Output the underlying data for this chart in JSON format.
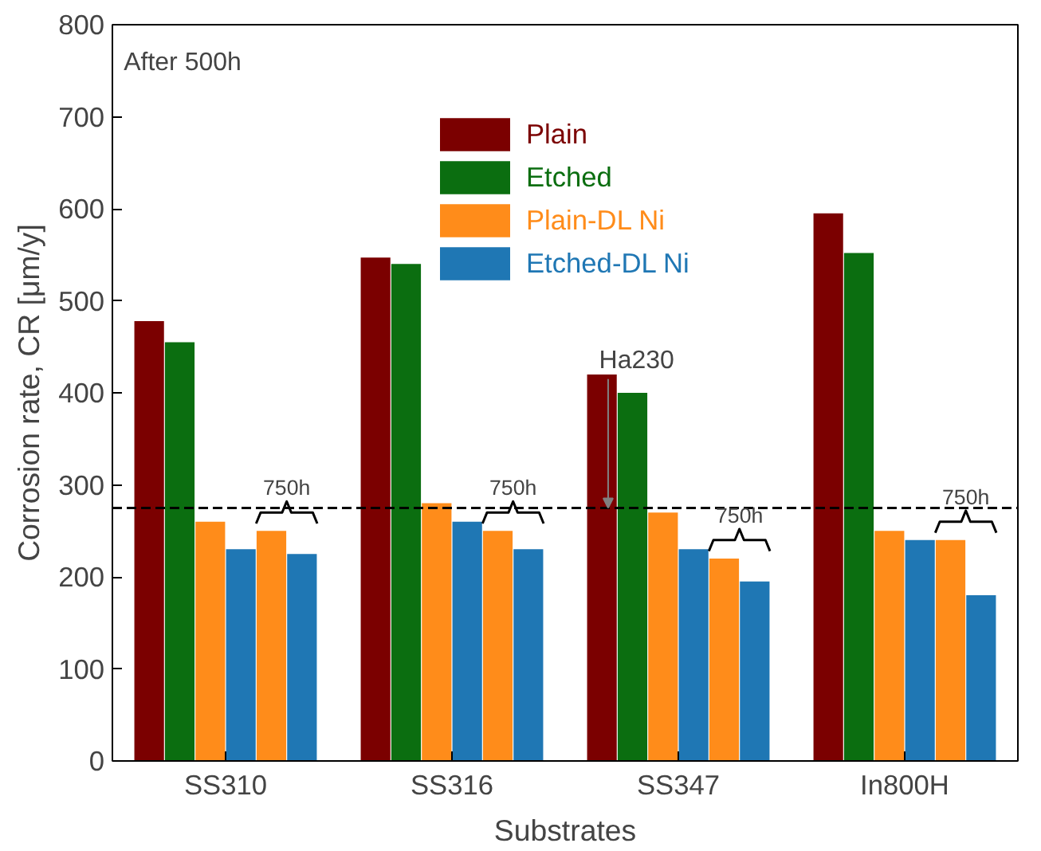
{
  "chart_data": {
    "type": "bar",
    "xlabel": "Substrates",
    "ylabel": "Corrosion rate, CR [μm/y]",
    "categories": [
      "SS310",
      "SS316",
      "SS347",
      "In800H"
    ],
    "series": [
      {
        "name": "Plain",
        "color": "#7b0000",
        "values": [
          478,
          547,
          420,
          595
        ]
      },
      {
        "name": "Etched",
        "color": "#0b6e10",
        "values": [
          455,
          540,
          400,
          552
        ]
      },
      {
        "name": "Plain-DL Ni",
        "color": "#ff8c1a",
        "values": [
          260,
          280,
          270,
          250
        ]
      },
      {
        "name": "Etched-DL Ni",
        "color": "#1f77b4",
        "values": [
          230,
          260,
          230,
          240
        ]
      },
      {
        "color": "#ff8c1a",
        "values": [
          250,
          250,
          220,
          240
        ]
      },
      {
        "color": "#1f77b4",
        "values": [
          225,
          230,
          195,
          180
        ]
      }
    ],
    "ylim": [
      0,
      800
    ],
    "yticks": [
      0,
      100,
      200,
      300,
      400,
      500,
      600,
      700,
      800
    ],
    "ref_lines": [
      {
        "axis": "y",
        "value": 275,
        "label": "Ha230",
        "line_style": "dashed",
        "color": "#000000"
      }
    ],
    "annotations": [
      "After 500h",
      "750h",
      "750h",
      "750h",
      "750h"
    ],
    "legend": "top",
    "grid": false
  }
}
